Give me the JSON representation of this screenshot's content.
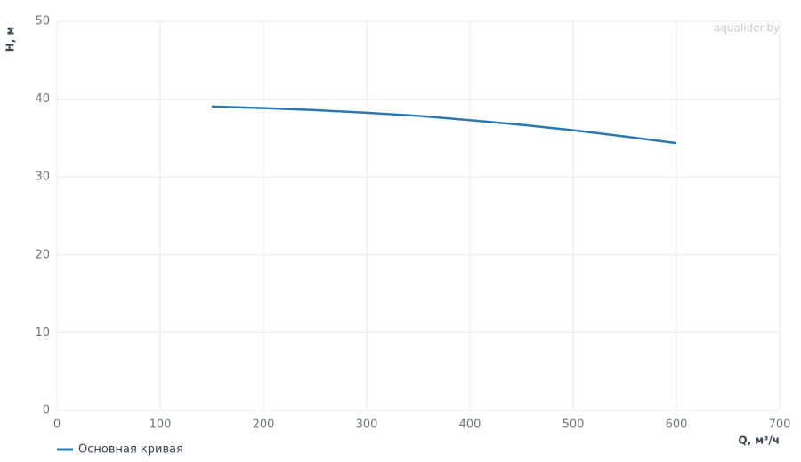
{
  "chart_data": {
    "type": "line",
    "watermark": "aqualider.by",
    "x_label": "Q, м³/ч",
    "y_label": "H, м",
    "x": [
      150,
      200,
      250,
      300,
      350,
      400,
      450,
      500,
      550,
      600
    ],
    "series": [
      {
        "name": "Основная кривая",
        "color": "#2a78b0",
        "values": [
          39.05,
          38.85,
          38.6,
          38.25,
          37.85,
          37.3,
          36.7,
          36.0,
          35.2,
          34.35
        ]
      }
    ],
    "xlim": [
      0,
      700
    ],
    "xticks": [
      0,
      100,
      200,
      300,
      400,
      500,
      600,
      700
    ],
    "ylim": [
      0,
      50
    ],
    "yticks": [
      0,
      10,
      20,
      30,
      40,
      50
    ],
    "grid": true,
    "legend": "bottom-left"
  }
}
